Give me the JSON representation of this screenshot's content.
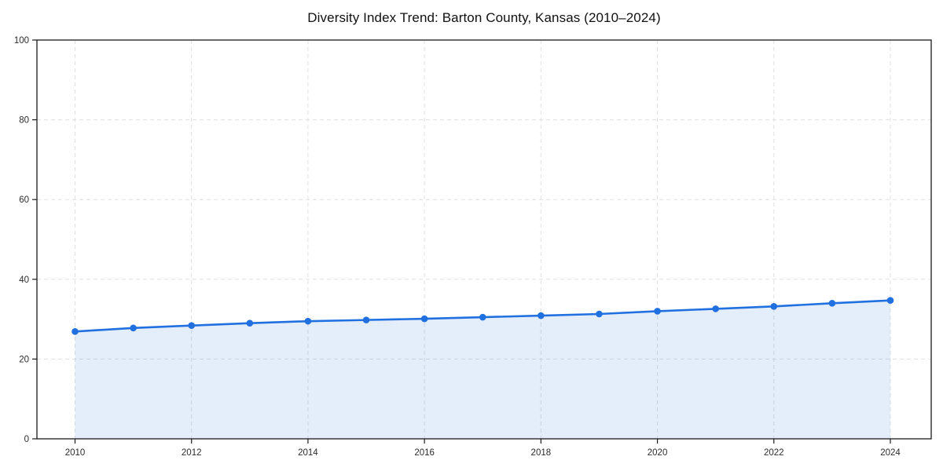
{
  "figure": {
    "background": "#ffffff"
  },
  "chart_data": {
    "type": "line",
    "title": "Diversity Index Trend: Barton County, Kansas (2010–2024)",
    "x": [
      2010,
      2011,
      2012,
      2013,
      2014,
      2015,
      2016,
      2017,
      2018,
      2019,
      2020,
      2021,
      2022,
      2023,
      2024
    ],
    "series": [
      {
        "name": "Diversity Index",
        "values": [
          26.9,
          27.8,
          28.4,
          29.0,
          29.5,
          29.8,
          30.1,
          30.5,
          30.9,
          31.3,
          32.0,
          32.6,
          33.2,
          34.0,
          34.7
        ]
      }
    ],
    "xlabel": "",
    "ylabel": "",
    "ylim": [
      0,
      100
    ],
    "yticks": [
      0,
      20,
      40,
      60,
      80,
      100
    ],
    "xticks": [
      2010,
      2012,
      2014,
      2016,
      2018,
      2020,
      2022,
      2024
    ],
    "grid": true,
    "grid_style": "dashed",
    "legend_position": "none",
    "marker": "circle",
    "colors": {
      "line": "#2170e0",
      "marker": "#2170e0",
      "area_fill": "rgba(33,112,224,0.12)",
      "grid": "#e0e0e0",
      "spine": "#1a1a1a",
      "tick_label": "#2b2b2b",
      "title": "#111111"
    }
  }
}
